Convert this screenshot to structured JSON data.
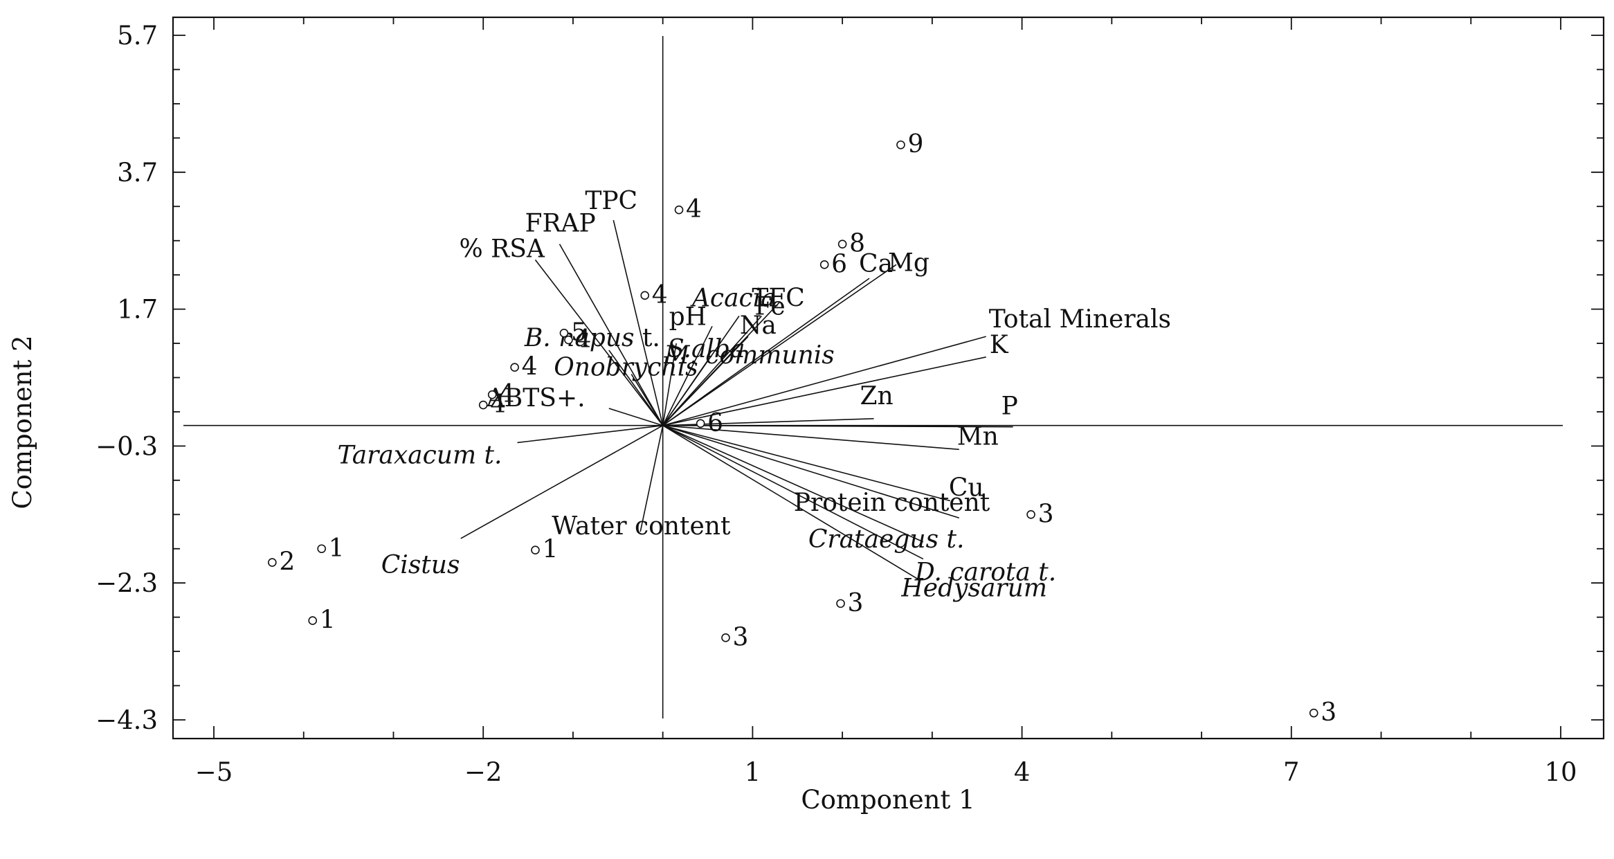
{
  "chart_data": {
    "type": "scatter",
    "subtype": "biplot",
    "xlabel": "Component 1",
    "ylabel": "Component 2",
    "xlim": [
      -5.45,
      10.45
    ],
    "ylim": [
      -4.6,
      5.7
    ],
    "x_ticks": [
      -5,
      -2,
      1,
      4,
      7,
      10
    ],
    "y_ticks": [
      5.7,
      3.7,
      1.7,
      -0.3,
      -2.3,
      -4.3
    ],
    "grid": false,
    "reference_lines": {
      "horizontal_y": 0,
      "vertical_x": 0
    },
    "points": [
      {
        "label": "9",
        "x": 2.65,
        "y": 4.1
      },
      {
        "label": "4",
        "x": 0.18,
        "y": 3.15
      },
      {
        "label": "8",
        "x": 2.0,
        "y": 2.65
      },
      {
        "label": "6",
        "x": 1.8,
        "y": 2.35
      },
      {
        "label": "4",
        "x": -0.2,
        "y": 1.9
      },
      {
        "label": "5",
        "x": -1.1,
        "y": 1.35
      },
      {
        "label": "4",
        "x": -1.05,
        "y": 1.25
      },
      {
        "label": "4",
        "x": -1.65,
        "y": 0.85
      },
      {
        "label": "4",
        "x": -1.9,
        "y": 0.45
      },
      {
        "label": "4",
        "x": -2.0,
        "y": 0.3
      },
      {
        "label": "6",
        "x": 0.42,
        "y": 0.03
      },
      {
        "label": "3",
        "x": 4.1,
        "y": -1.3
      },
      {
        "label": "1",
        "x": -3.8,
        "y": -1.8
      },
      {
        "label": "2",
        "x": -4.35,
        "y": -2.0
      },
      {
        "label": "1",
        "x": -1.42,
        "y": -1.82
      },
      {
        "label": "1",
        "x": -3.9,
        "y": -2.85
      },
      {
        "label": "3",
        "x": 1.98,
        "y": -2.6
      },
      {
        "label": "3",
        "x": 0.7,
        "y": -3.1
      },
      {
        "label": "3",
        "x": 7.25,
        "y": -4.2
      }
    ],
    "vectors": [
      {
        "label": "TPC",
        "x": -0.55,
        "y": 3.0
      },
      {
        "label": "FRAP",
        "x": -1.15,
        "y": 2.65
      },
      {
        "label": "% RSA",
        "x": -1.42,
        "y": 2.42
      },
      {
        "label": "B. napus t.",
        "x": -0.6,
        "y": 1.1,
        "italic": true,
        "label_suffix": " t."
      },
      {
        "label": "Onobrychis",
        "x": -0.35,
        "y": 0.75,
        "italic": true
      },
      {
        "label": "ABTS+.",
        "x": -0.6,
        "y": 0.25
      },
      {
        "label": "Taraxacum t.",
        "x": -1.62,
        "y": -0.25,
        "italic": true
      },
      {
        "label": "Cistus",
        "x": -2.25,
        "y": -1.65,
        "italic": true
      },
      {
        "label": "Water content",
        "x": -0.25,
        "y": -1.55
      },
      {
        "label": "Acacia",
        "x": 0.85,
        "y": 1.6,
        "italic": true
      },
      {
        "label": "TFC",
        "x": 1.3,
        "y": 1.8
      },
      {
        "label": "pH",
        "x": 0.55,
        "y": 1.45
      },
      {
        "label": "Fe",
        "x": 1.1,
        "y": 1.6
      },
      {
        "label": "Na",
        "x": 0.95,
        "y": 1.3
      },
      {
        "label": "S.alba",
        "x": 0.15,
        "y": 1.2,
        "italic": true
      },
      {
        "label": "M. communis",
        "x": 0.5,
        "y": 0.95,
        "italic": true
      },
      {
        "label": "Mg",
        "x": 2.6,
        "y": 2.35
      },
      {
        "label": "Ca",
        "x": 2.3,
        "y": 2.15
      },
      {
        "label": "Total Minerals",
        "x": 3.6,
        "y": 1.3
      },
      {
        "label": "K",
        "x": 3.6,
        "y": 1.0
      },
      {
        "label": "Zn",
        "x": 2.35,
        "y": 0.1
      },
      {
        "label": "P",
        "x": 3.9,
        "y": -0.02
      },
      {
        "label": "Mn",
        "x": 3.3,
        "y": -0.35
      },
      {
        "label": "Cu",
        "x": 3.2,
        "y": -1.1
      },
      {
        "label": "Protein content",
        "x": 3.3,
        "y": -1.35
      },
      {
        "label": "Crataegus t.",
        "x": 2.9,
        "y": -1.7,
        "italic": true
      },
      {
        "label": "D. carota t.",
        "x": 2.9,
        "y": -1.95,
        "italic": true
      },
      {
        "label": "Hedysarum",
        "x": 2.85,
        "y": -2.25,
        "italic": true
      }
    ]
  }
}
